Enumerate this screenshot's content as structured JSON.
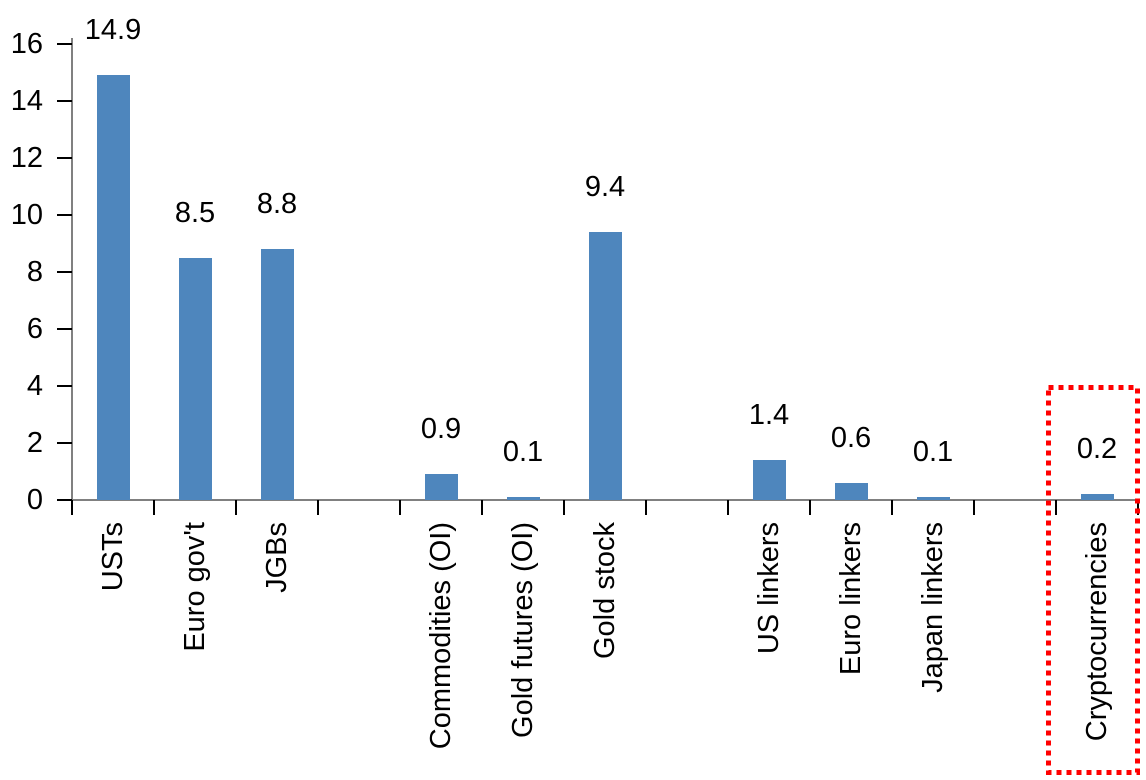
{
  "chart_data": {
    "type": "bar",
    "title": "",
    "xlabel": "",
    "ylabel": "",
    "categories": [
      "USTs",
      "Euro gov't",
      "JGBs",
      "Commodities (OI)",
      "Gold futures (OI)",
      "Gold stock",
      "US linkers",
      "Euro linkers",
      "Japan linkers",
      "Cryptocurrencies"
    ],
    "values": [
      14.9,
      8.5,
      8.8,
      0.9,
      0.1,
      9.4,
      1.4,
      0.6,
      0.1,
      0.2
    ],
    "gap_after_indices": [
      2,
      5,
      8
    ],
    "highlight_index": 9,
    "ylim": [
      0,
      16
    ],
    "ytick_step": 2,
    "ytick_labels": [
      "0",
      "2",
      "4",
      "6",
      "8",
      "10",
      "12",
      "14",
      "16"
    ],
    "grid": false,
    "legend": "none",
    "colors": {
      "bar": "#4E86BD",
      "axis_line": "#808080",
      "tick": "#000000",
      "text": "#000000",
      "highlight_box": "#FF0000",
      "background": "#FFFFFF"
    }
  }
}
